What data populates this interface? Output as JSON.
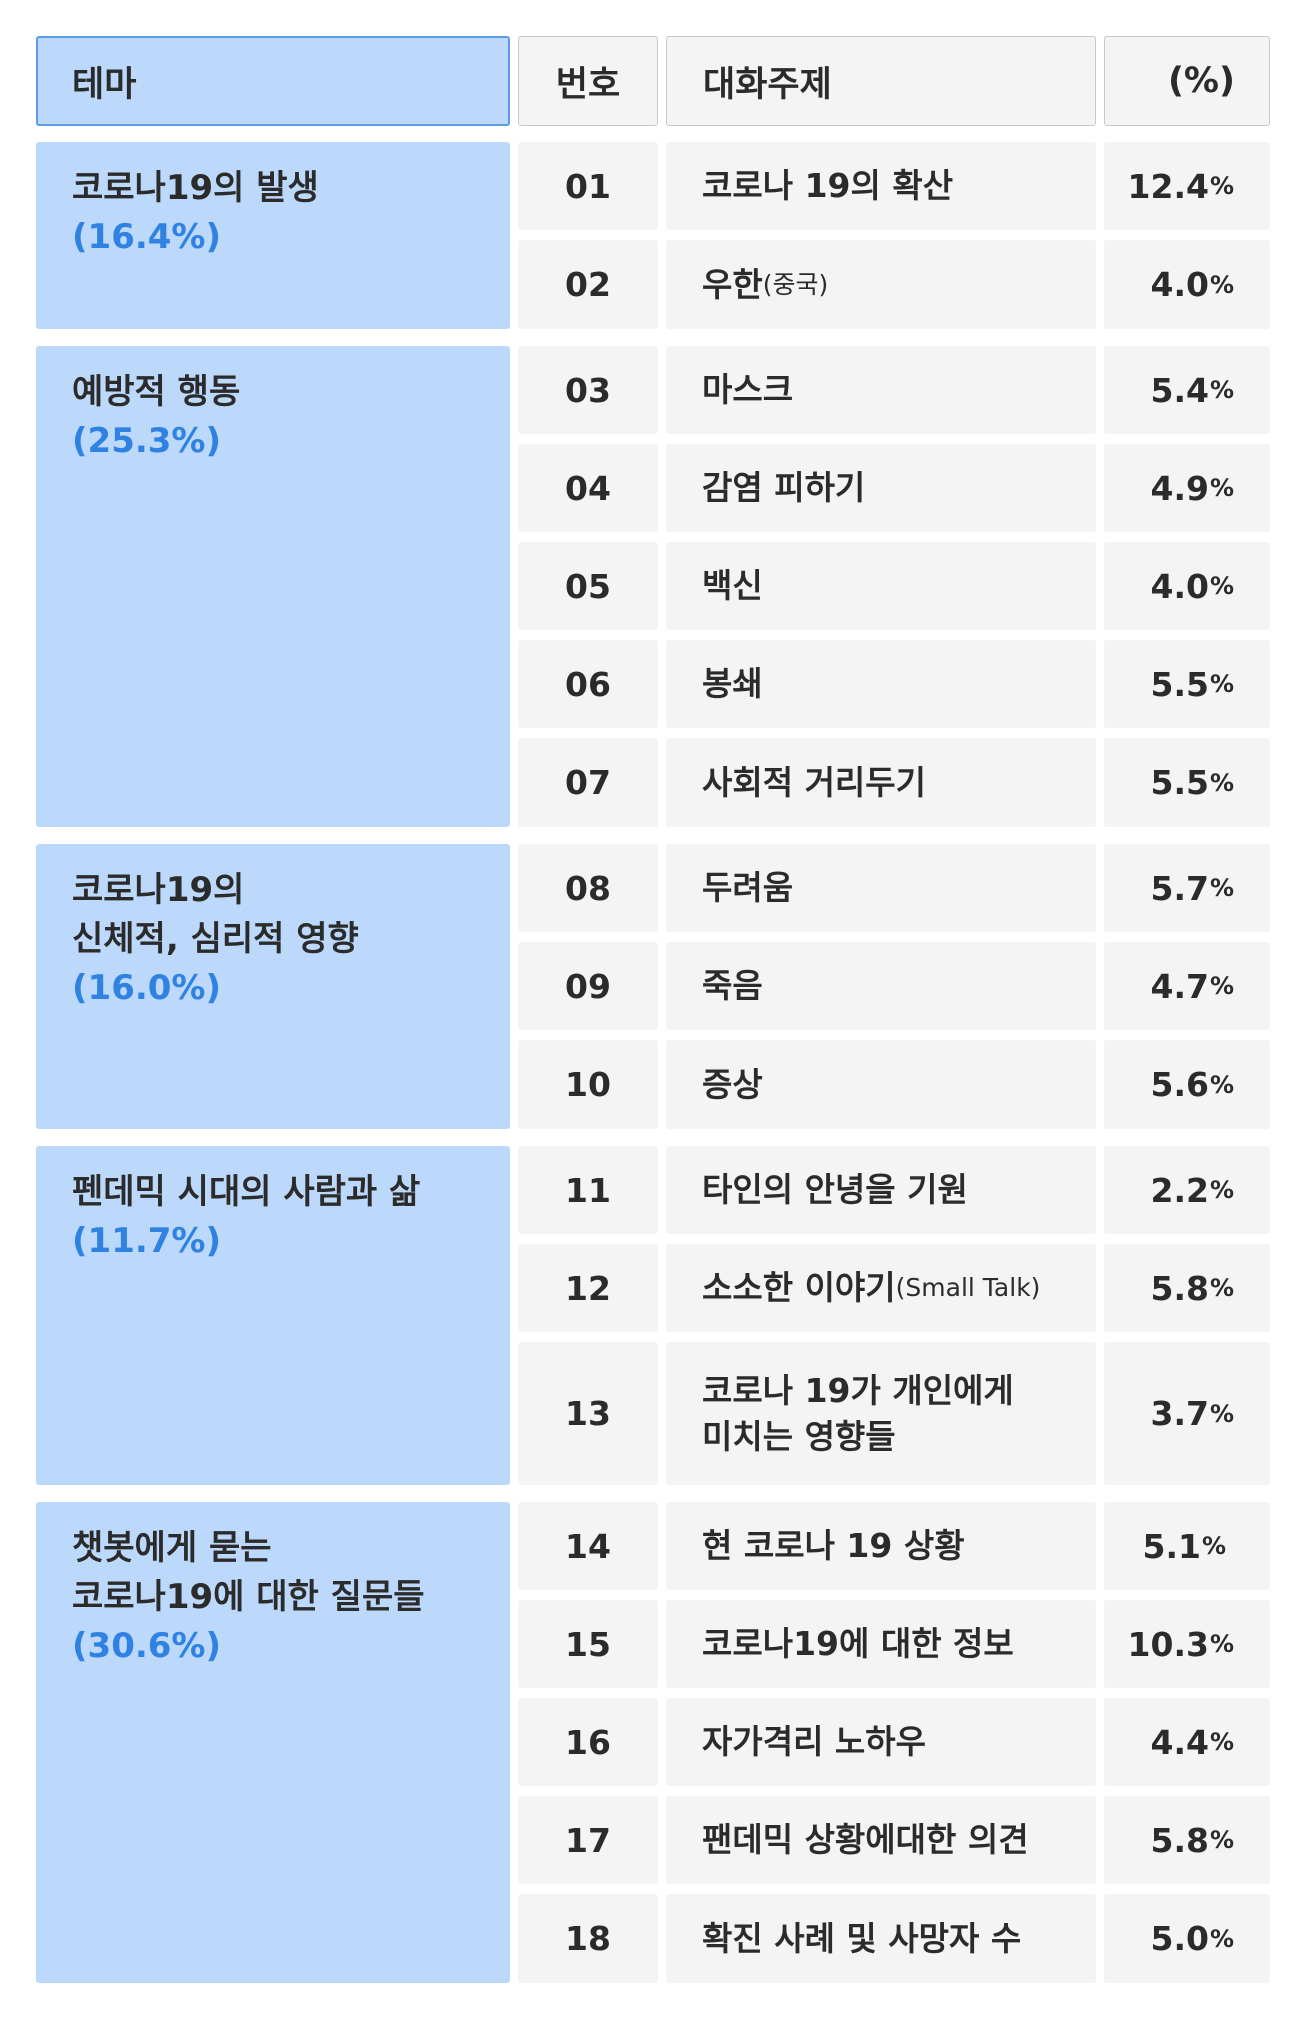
{
  "header": {
    "theme": "테마",
    "number": "번호",
    "topic": "대화주제",
    "percent": "(%)"
  },
  "themes": [
    {
      "name": "코로나19의 발생",
      "pct": "(16.4%)"
    },
    {
      "name": "예방적 행동",
      "pct": "(25.3%)"
    },
    {
      "name": "코로나19의\n신체적, 심리적 영향",
      "pct": "(16.0%)"
    },
    {
      "name": "펜데믹 시대의 사람과 삶",
      "pct": "(11.7%)"
    },
    {
      "name": "챗봇에게 묻는\n코로나19에 대한 질문들",
      "pct": "(30.6%)"
    }
  ],
  "rows": [
    {
      "num": "01",
      "topic": "코로나 19의 확산",
      "note": "",
      "value": "12.4",
      "unit": "%"
    },
    {
      "num": "02",
      "topic": "우한",
      "note": "(중국)",
      "value": "4.0",
      "unit": "%"
    },
    {
      "num": "03",
      "topic": "마스크",
      "note": "",
      "value": "5.4",
      "unit": "%"
    },
    {
      "num": "04",
      "topic": "감염 피하기",
      "note": "",
      "value": "4.9",
      "unit": "%"
    },
    {
      "num": "05",
      "topic": "백신",
      "note": "",
      "value": "4.0",
      "unit": "%"
    },
    {
      "num": "06",
      "topic": "봉쇄",
      "note": "",
      "value": "5.5",
      "unit": "%"
    },
    {
      "num": "07",
      "topic": "사회적 거리두기",
      "note": "",
      "value": "5.5",
      "unit": "%"
    },
    {
      "num": "08",
      "topic": "두려움",
      "note": "",
      "value": "5.7",
      "unit": "%"
    },
    {
      "num": "09",
      "topic": "죽음",
      "note": "",
      "value": "4.7",
      "unit": "%"
    },
    {
      "num": "10",
      "topic": "증상",
      "note": "",
      "value": "5.6",
      "unit": "%"
    },
    {
      "num": "11",
      "topic": "타인의 안녕을 기원",
      "note": "",
      "value": "2.2",
      "unit": "%"
    },
    {
      "num": "12",
      "topic": "소소한 이야기",
      "note": "(Small Talk)",
      "value": "5.8",
      "unit": "%"
    },
    {
      "num": "13",
      "topic": "코로나 19가 개인에게\n미치는 영향들",
      "note": "",
      "value": "3.7",
      "unit": "%"
    },
    {
      "num": "14",
      "topic": "현 코로나 19 상황",
      "note": "",
      "value": "5.1",
      "unit": "%"
    },
    {
      "num": "15",
      "topic": "코로나19에 대한 정보",
      "note": "",
      "value": "10.3",
      "unit": "%"
    },
    {
      "num": "16",
      "topic": "자가격리 노하우",
      "note": "",
      "value": "4.4",
      "unit": "%"
    },
    {
      "num": "17",
      "topic": "팬데믹 상황에대한 의견",
      "note": "",
      "value": "5.8",
      "unit": "%"
    },
    {
      "num": "18",
      "topic": "확진 사례 및 사망자 수",
      "note": "",
      "value": "5.0",
      "unit": "%"
    }
  ]
}
